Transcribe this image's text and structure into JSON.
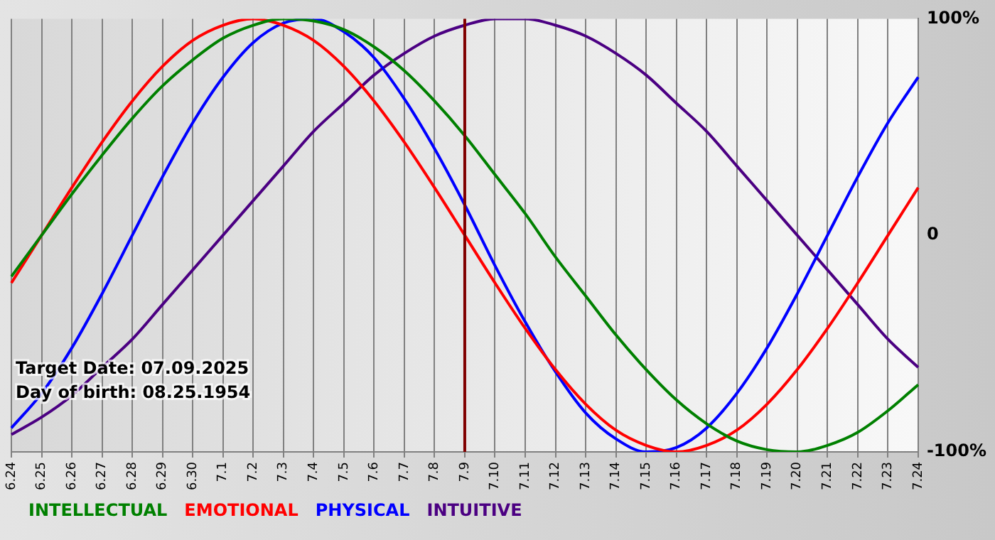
{
  "chart_data": {
    "type": "line",
    "categories": [
      "6.24",
      "6.25",
      "6.26",
      "6.27",
      "6.28",
      "6.29",
      "6.30",
      "7.1",
      "7.2",
      "7.3",
      "7.4",
      "7.5",
      "7.6",
      "7.7",
      "7.8",
      "7.9",
      "7.10",
      "7.11",
      "7.12",
      "7.13",
      "7.14",
      "7.15",
      "7.16",
      "7.17",
      "7.18",
      "7.19",
      "7.20",
      "7.21",
      "7.22",
      "7.23",
      "7.24"
    ],
    "series": [
      {
        "name": "INTELLECTUAL",
        "color": "#008000",
        "values": [
          -19,
          0,
          19,
          37,
          54,
          69,
          81,
          91,
          97,
          100,
          99,
          95,
          87,
          76,
          62,
          46,
          28,
          10,
          -10,
          -28,
          -46,
          -62,
          -76,
          -87,
          -95,
          -99,
          -100,
          -97,
          -91,
          -81,
          -69
        ]
      },
      {
        "name": "EMOTIONAL",
        "color": "#ff0000",
        "values": [
          -22,
          0,
          22,
          43,
          62,
          78,
          90,
          97,
          100,
          97,
          90,
          78,
          62,
          43,
          22,
          0,
          -22,
          -43,
          -62,
          -78,
          -90,
          -97,
          -100,
          -97,
          -90,
          -78,
          -62,
          -43,
          -22,
          0,
          22
        ]
      },
      {
        "name": "PHYSICAL",
        "color": "#0000ff",
        "values": [
          -89,
          -73,
          -52,
          -27,
          0,
          27,
          52,
          73,
          89,
          98,
          100,
          94,
          82,
          63,
          40,
          14,
          -14,
          -40,
          -63,
          -82,
          -94,
          -100,
          -98,
          -89,
          -73,
          -52,
          -27,
          0,
          27,
          52,
          73
        ]
      },
      {
        "name": "INTUITIVE",
        "color": "#4b0082",
        "values": [
          -92,
          -84,
          -74,
          -61,
          -48,
          -32,
          -16,
          0,
          16,
          32,
          48,
          61,
          74,
          84,
          92,
          97,
          100,
          100,
          97,
          92,
          84,
          74,
          61,
          48,
          32,
          16,
          0,
          -16,
          -32,
          -48,
          -61
        ]
      }
    ],
    "ylim": [
      -100,
      100
    ],
    "yticks": [
      {
        "value": -100,
        "label": "-100%"
      },
      0,
      {
        "value": 100,
        "label": "100%"
      }
    ],
    "ref_lines": [
      {
        "axis": "x",
        "value": "7.9",
        "color": "#800000"
      }
    ],
    "annotations": [
      "Target Date: 07.09.2025",
      "Day of birth: 08.25.1954"
    ],
    "grid": "x",
    "legend": "bottom left",
    "marker": "none",
    "line_style": "solid"
  }
}
